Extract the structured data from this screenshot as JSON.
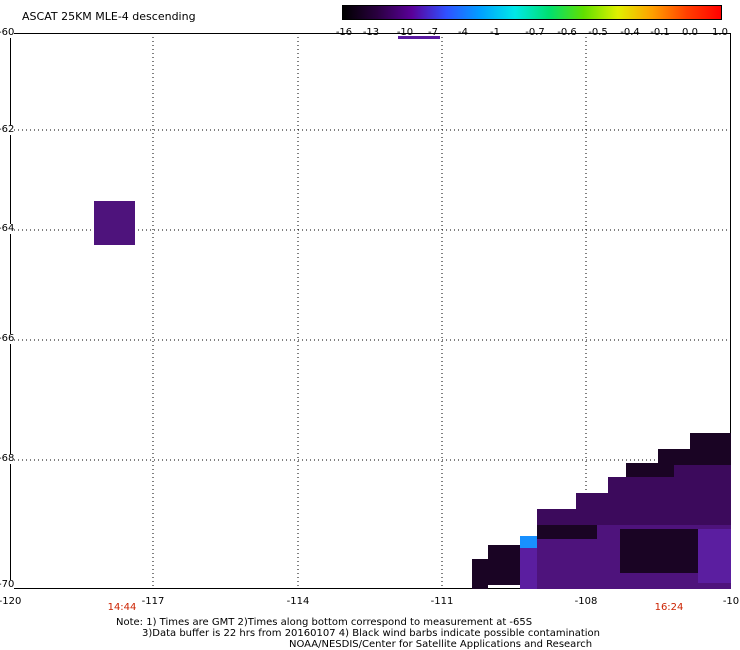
{
  "title": "ASCAT 25KM MLE-4 descending",
  "colorbar": {
    "labels": [
      "-16",
      "-13",
      "-10",
      "-7",
      "-4",
      "-1",
      "-0.7",
      "-0.6",
      "-0.5",
      "-0.4",
      "-0.1",
      "0.0",
      "1.0"
    ],
    "colors": [
      "#000000",
      "#2a0040",
      "#5a0099",
      "#3050ff",
      "#00a0ff",
      "#00e8e8",
      "#00e070",
      "#60e000",
      "#e0f000",
      "#ffa000",
      "#ff4000",
      "#ff0000"
    ],
    "marker_color": "#5a1aa0"
  },
  "latitudes": [
    "-60",
    "-62",
    "-64",
    "-66",
    "-68",
    "-70"
  ],
  "longitudes": [
    "-120",
    "-117",
    "-114",
    "-111",
    "-108",
    "-10"
  ],
  "times": [
    "14:44",
    "16:24"
  ],
  "notes": {
    "line1": "Note: 1) Times are GMT 2)Times along bottom correspond to measurement at -65S",
    "line2": "3)Data buffer is 22 hrs from 20160107 4) Black wind barbs indicate possible contamination",
    "line3": "NOAA/NESDIS/Center for Satellite Applications and Research"
  },
  "colors": {
    "deep_purple": "#3c0a5c",
    "purple": "#4e137c",
    "violet": "#5b1ea0",
    "dark": "#1a0424",
    "blue_cell": "#1890ff"
  }
}
